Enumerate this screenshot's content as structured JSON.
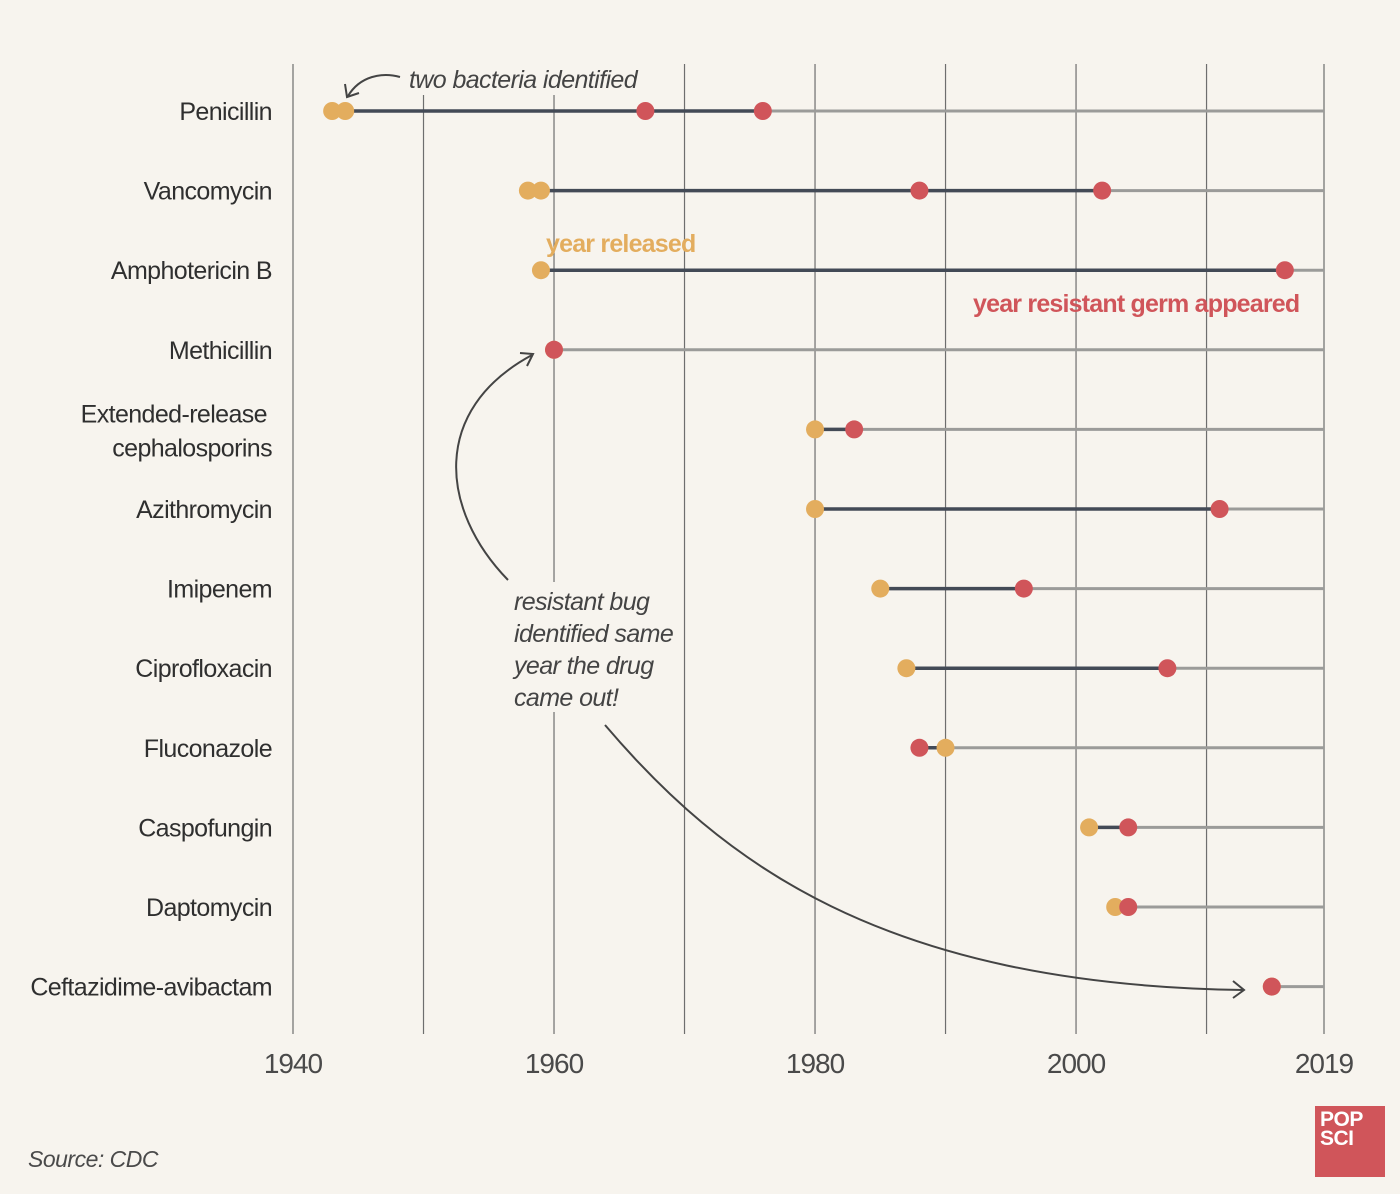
{
  "chart_data": {
    "type": "timeline-dumbbell",
    "title": "",
    "xlabel": "",
    "ylabel": "",
    "xlim": [
      1940,
      2019
    ],
    "x_ticks": [
      {
        "value": 1940,
        "label": "1940"
      },
      {
        "value": 1960,
        "label": "1960"
      },
      {
        "value": 1980,
        "label": "1980"
      },
      {
        "value": 2000,
        "label": "2000"
      },
      {
        "value": 2019,
        "label": "2019"
      }
    ],
    "minor_gridlines": [
      1950,
      1970,
      1990,
      2010
    ],
    "series_legend": {
      "released": "year released",
      "resistant": "year resistant germ appeared"
    },
    "rows": [
      {
        "drug": "Penicillin",
        "released": [
          1943,
          1944
        ],
        "resistant": [
          1967,
          1976
        ]
      },
      {
        "drug": "Vancomycin",
        "released": [
          1958,
          1959
        ],
        "resistant": [
          1988,
          2002
        ]
      },
      {
        "drug": "Amphotericin B",
        "released": [
          1959
        ],
        "resistant": [
          2016
        ]
      },
      {
        "drug": "Methicillin",
        "released": [
          1960
        ],
        "resistant": [
          1960
        ]
      },
      {
        "drug": "Extended-release\ncephalosporins",
        "released": [
          1980
        ],
        "resistant": [
          1983
        ]
      },
      {
        "drug": "Azithromycin",
        "released": [
          1980
        ],
        "resistant": [
          2011
        ]
      },
      {
        "drug": "Imipenem",
        "released": [
          1985
        ],
        "resistant": [
          1996
        ]
      },
      {
        "drug": "Ciprofloxacin",
        "released": [
          1987
        ],
        "resistant": [
          2007
        ]
      },
      {
        "drug": "Fluconazole",
        "released": [
          1990
        ],
        "resistant": [
          1988
        ]
      },
      {
        "drug": "Caspofungin",
        "released": [
          2001
        ],
        "resistant": [
          2004
        ]
      },
      {
        "drug": "Daptomycin",
        "released": [
          2003
        ],
        "resistant": [
          2004
        ]
      },
      {
        "drug": "Ceftazidime-avibactam",
        "released": [
          2015
        ],
        "resistant": [
          2015
        ]
      }
    ],
    "annotations": {
      "two_bacteria": "two bacteria identified",
      "same_year": [
        "resistant bug",
        "identified same",
        "year the drug",
        "came out!"
      ]
    }
  },
  "colors": {
    "background": "#f7f4ee",
    "released": "#e3ad5e",
    "resistant": "#d0555a",
    "span_line": "#434a56",
    "tail_line": "#9b9b99",
    "gridline": "#6e6e6e"
  },
  "footer": {
    "source": "Source: CDC",
    "logo_line1": "POP",
    "logo_line2": "SCI"
  }
}
